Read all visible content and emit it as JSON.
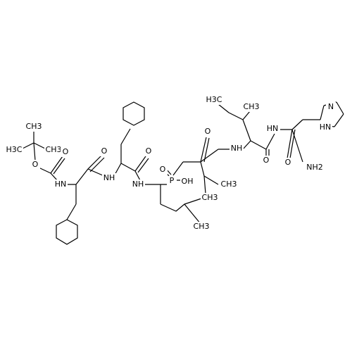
{
  "atoms": [
    {
      "label": "CH3"
    },
    {
      "label": "H3C"
    },
    {
      "label": "CH3"
    },
    {
      "label": "O"
    },
    {
      "label": "O"
    },
    {
      "label": "HN"
    },
    {
      "label": "O"
    },
    {
      "label": "NH"
    },
    {
      "label": "O"
    },
    {
      "label": "NH"
    },
    {
      "label": "O"
    },
    {
      "label": "P"
    },
    {
      "label": "OH"
    },
    {
      "label": "CH3"
    },
    {
      "label": "CH3"
    },
    {
      "label": "CH3"
    },
    {
      "label": "H3C"
    },
    {
      "label": "CH3"
    },
    {
      "label": "O"
    },
    {
      "label": "NH"
    },
    {
      "label": "O"
    },
    {
      "label": "HN"
    },
    {
      "label": "O"
    },
    {
      "label": "NH2"
    },
    {
      "label": "N"
    },
    {
      "label": "HN"
    }
  ]
}
